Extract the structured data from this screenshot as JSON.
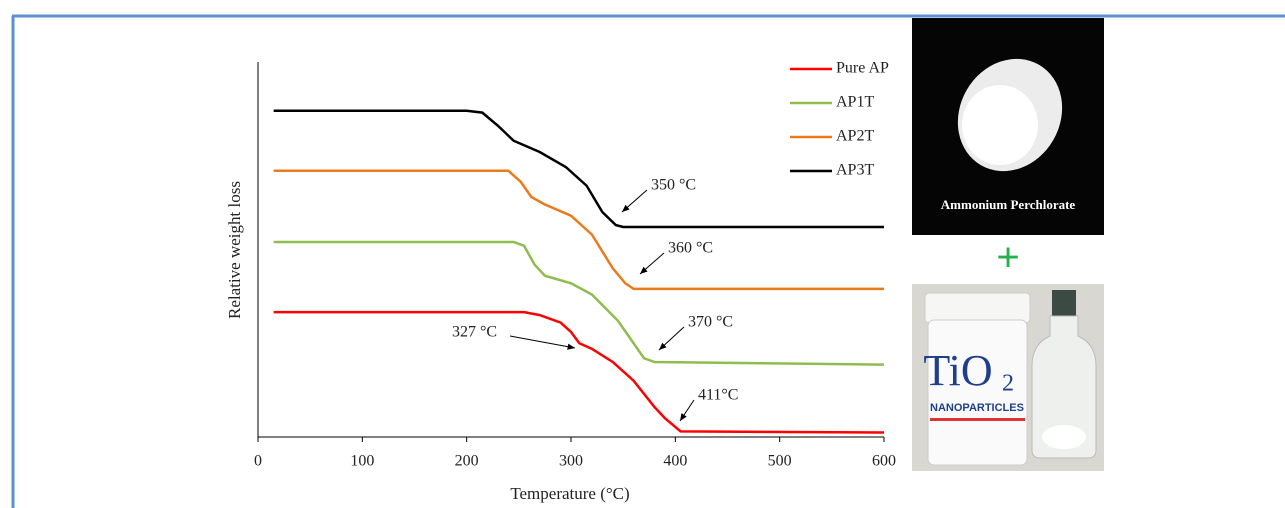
{
  "chart_data": {
    "type": "line",
    "xlabel": "Temperature (°C)",
    "ylabel": "Relative weight loss",
    "xlim": [
      0,
      600
    ],
    "xticks": [
      0,
      100,
      200,
      300,
      400,
      500,
      600
    ],
    "ylim": [
      0,
      100
    ],
    "series": [
      {
        "name": "Pure AP",
        "color": "#ff0000",
        "x": [
          15,
          255,
          270,
          290,
          300,
          308,
          320,
          340,
          360,
          380,
          390,
          405,
          600
        ],
        "values": [
          33.3,
          33.3,
          32.5,
          30.5,
          28,
          25,
          23.5,
          20,
          15,
          8,
          5,
          1.5,
          1.2
        ]
      },
      {
        "name": "AP1T",
        "color": "#8fbc4f",
        "x": [
          15,
          245,
          255,
          265,
          275,
          300,
          320,
          345,
          360,
          370,
          380,
          600
        ],
        "values": [
          52,
          52,
          51,
          46,
          43,
          41,
          38,
          31,
          25,
          21,
          20,
          19.3
        ]
      },
      {
        "name": "AP2T",
        "color": "#e97b1e",
        "x": [
          15,
          240,
          252,
          262,
          275,
          300,
          320,
          340,
          352,
          360,
          600
        ],
        "values": [
          71,
          71,
          68,
          64,
          62,
          59,
          54,
          45,
          41,
          39.5,
          39.5
        ]
      },
      {
        "name": "AP3T",
        "color": "#000000",
        "x": [
          15,
          200,
          215,
          230,
          245,
          270,
          295,
          315,
          330,
          343,
          350,
          600
        ],
        "values": [
          87,
          87,
          86.5,
          83,
          79,
          76,
          72,
          67,
          60,
          56.5,
          56,
          56
        ]
      }
    ],
    "annotations": [
      "350 °C",
      "360 °C",
      "370 °C",
      "411°C",
      "327 °C"
    ]
  },
  "images": {
    "top_label": "Ammonium Perchlorate",
    "plus": "+",
    "bottle_text": "TiO",
    "bottle_sub": "2",
    "bottle_label": "NANOPARTICLES"
  }
}
